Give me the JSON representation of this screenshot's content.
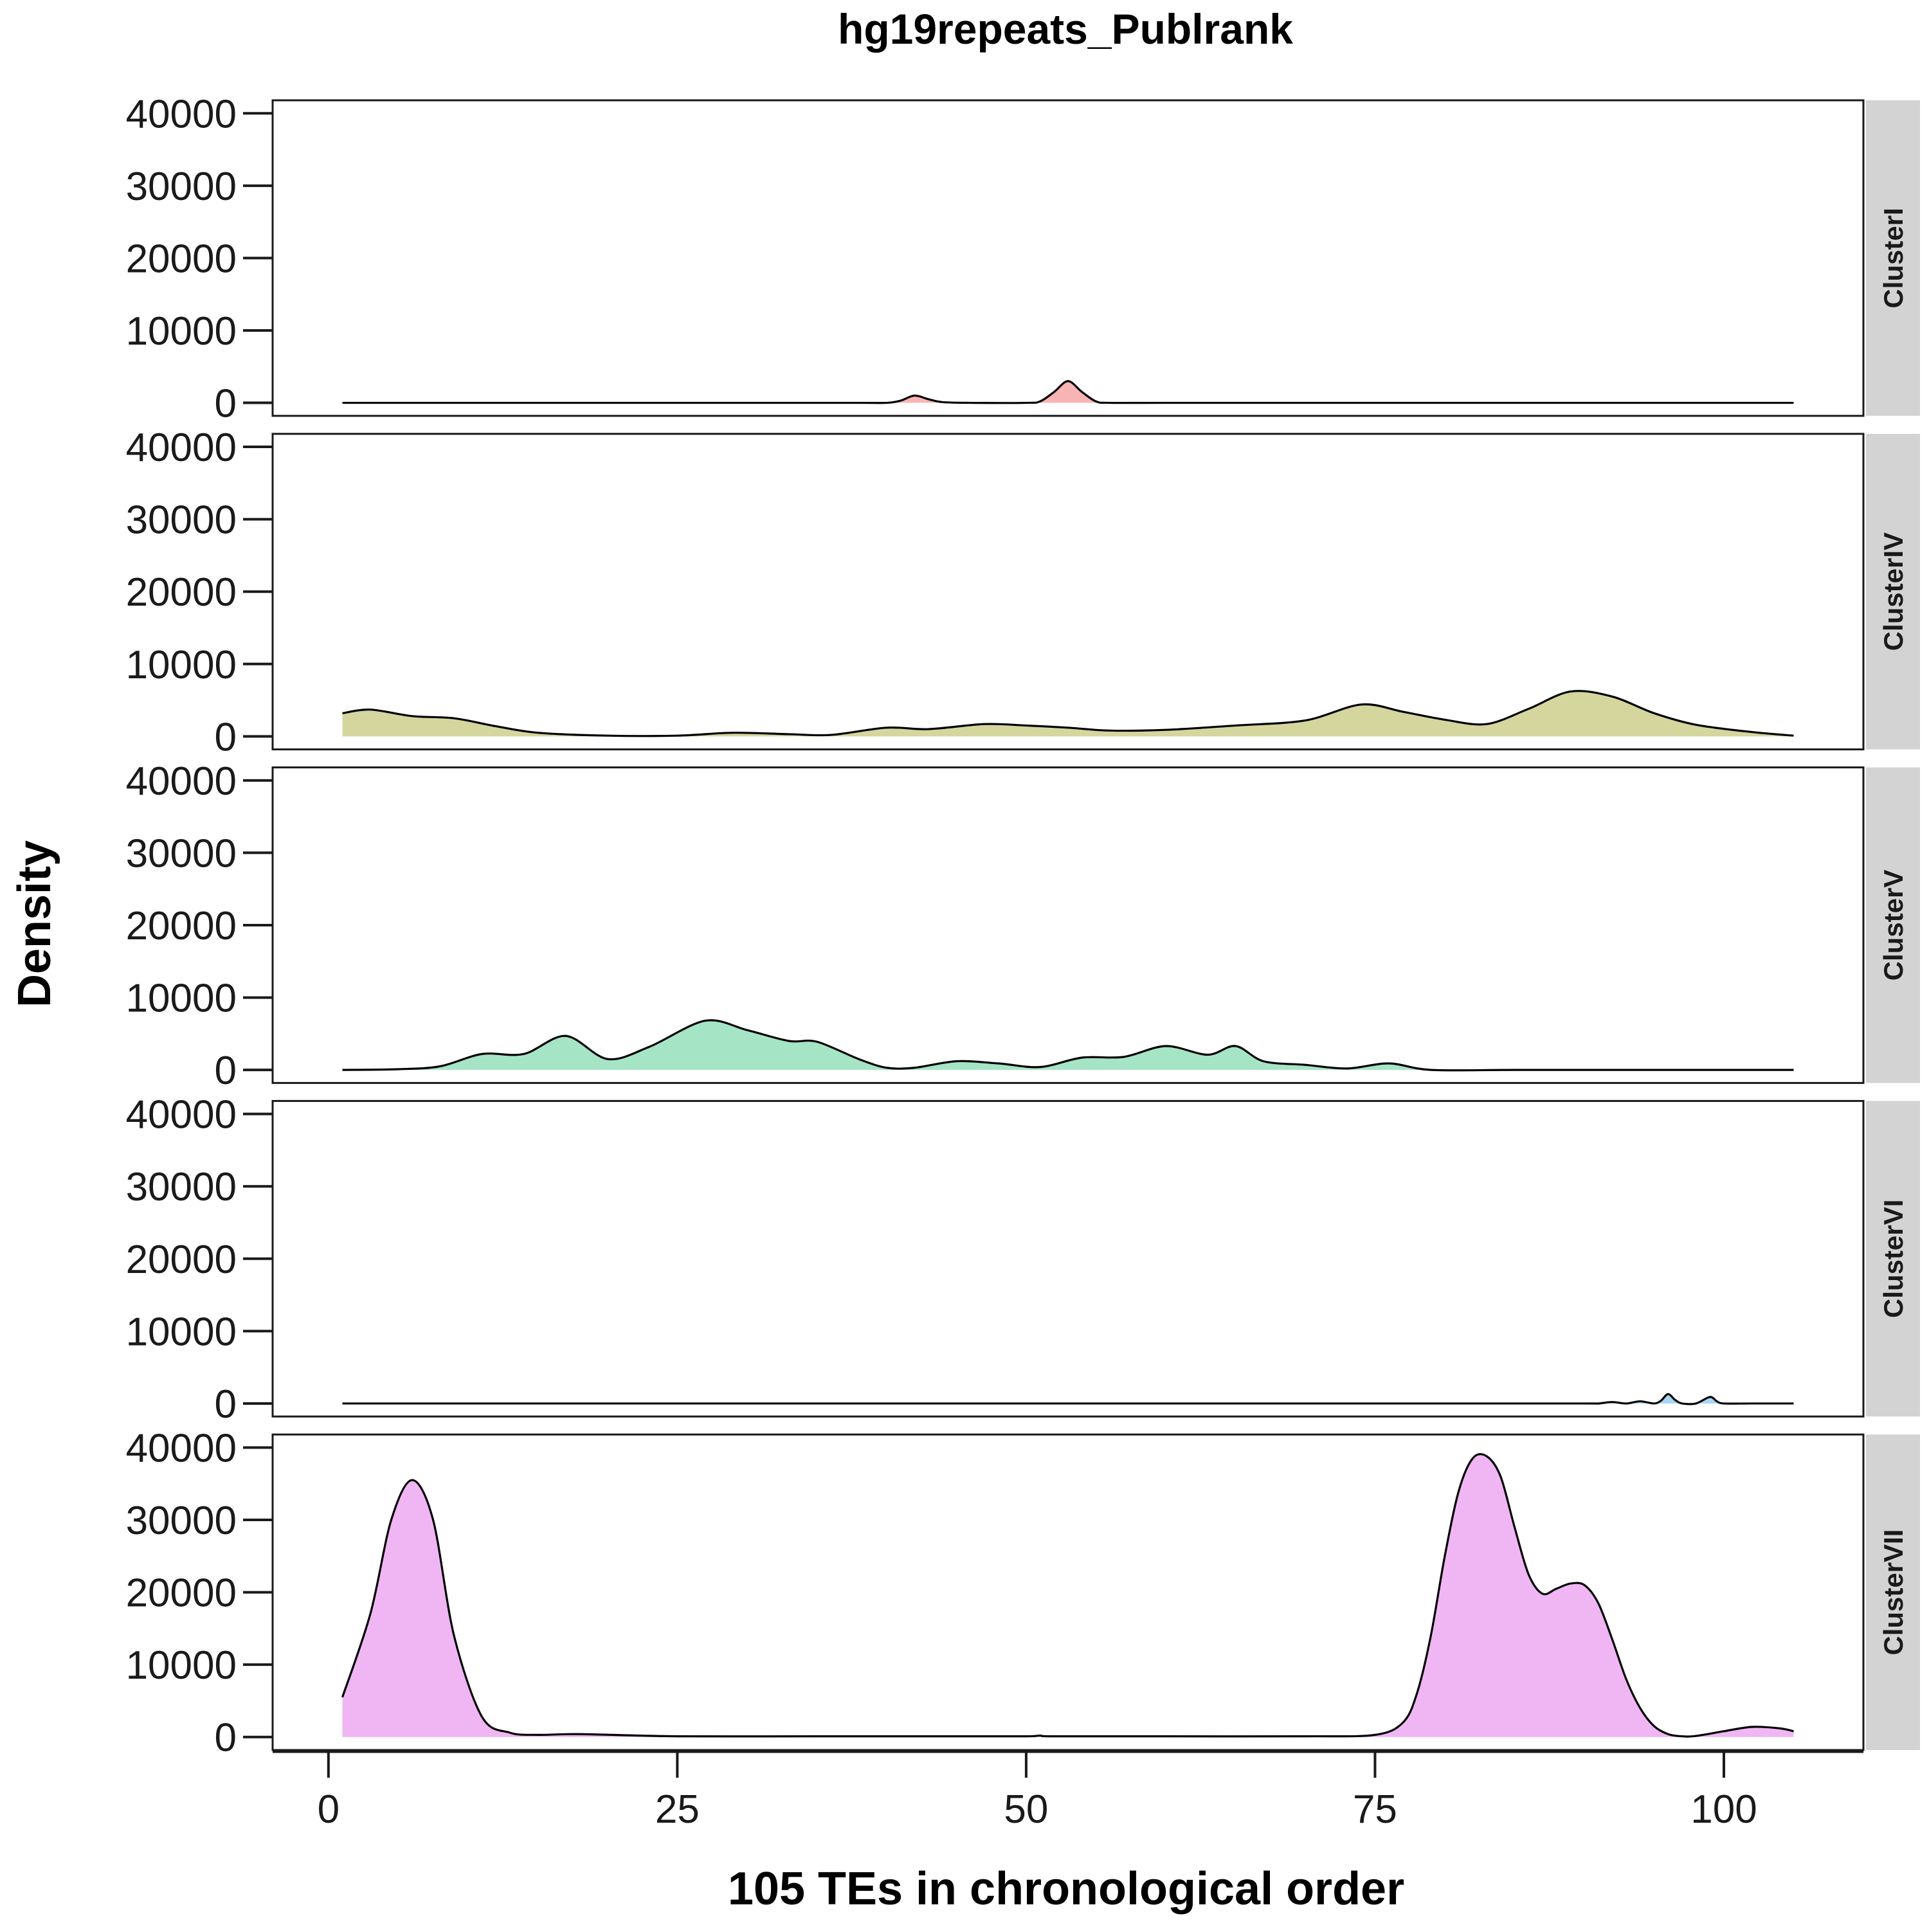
{
  "chart_data": {
    "type": "area",
    "title": "hg19repeats_Publrank",
    "xlabel": "105 TEs in chronological order",
    "ylabel": "Density",
    "xlim": [
      -4,
      110
    ],
    "ylim": [
      -1800,
      41800
    ],
    "x_ticks": [
      0,
      25,
      50,
      75,
      100
    ],
    "x_tick_labels": [
      "0",
      "25",
      "50",
      "75",
      "100"
    ],
    "y_ticks": [
      0,
      10000,
      20000,
      30000,
      40000
    ],
    "y_tick_labels": [
      "0",
      "10000",
      "20000",
      "30000",
      "40000"
    ],
    "grid": false,
    "legend": "none",
    "facets": [
      {
        "name": "ClusterI",
        "color": "#F8B4B4",
        "x": [
          1,
          10,
          20,
          30,
          38,
          40,
          41,
          42,
          43,
          44,
          46,
          50,
          51,
          52,
          53,
          54,
          55,
          56,
          60,
          70,
          80,
          90,
          100,
          105
        ],
        "y": [
          0,
          0,
          0,
          0,
          0,
          0,
          300,
          1000,
          500,
          100,
          0,
          0,
          200,
          1500,
          3000,
          1500,
          200,
          0,
          0,
          0,
          0,
          0,
          0,
          0
        ]
      },
      {
        "name": "ClusterIV",
        "color": "#D4D69E",
        "x": [
          1,
          3,
          6,
          9,
          12,
          15,
          20,
          25,
          29,
          33,
          36,
          40,
          43,
          47,
          50,
          53,
          56,
          60,
          65,
          70,
          74,
          77,
          80,
          83,
          86,
          89,
          92,
          95,
          98,
          102,
          105
        ],
        "y": [
          3200,
          3700,
          2800,
          2500,
          1400,
          500,
          100,
          100,
          500,
          300,
          200,
          1200,
          1000,
          1700,
          1500,
          1200,
          800,
          900,
          1500,
          2200,
          4400,
          3400,
          2300,
          1700,
          3800,
          6200,
          5500,
          3200,
          1600,
          600,
          100
        ]
      },
      {
        "name": "ClusterV",
        "color": "#A6E4C6",
        "x": [
          1,
          5,
          8,
          11,
          14,
          17,
          20,
          23,
          27,
          30,
          33,
          35,
          38,
          40,
          42,
          45,
          48,
          51,
          54,
          57,
          60,
          63,
          65,
          67,
          70,
          73,
          76,
          79,
          85,
          95,
          105
        ],
        "y": [
          0,
          100,
          500,
          2200,
          2200,
          4700,
          1500,
          3200,
          6800,
          5500,
          4000,
          3900,
          1500,
          300,
          300,
          1200,
          900,
          400,
          1700,
          1800,
          3300,
          2100,
          3300,
          1200,
          700,
          200,
          900,
          0,
          0,
          0,
          0
        ]
      },
      {
        "name": "ClusterVI",
        "color": "#A6D6F4",
        "x": [
          1,
          20,
          40,
          60,
          80,
          90,
          91,
          92,
          93,
          94,
          95,
          95.5,
          96,
          96.5,
          97,
          98,
          99,
          99.5,
          100,
          102,
          105
        ],
        "y": [
          0,
          0,
          0,
          0,
          0,
          0,
          0,
          200,
          0,
          300,
          0,
          400,
          1300,
          500,
          0,
          0,
          900,
          300,
          0,
          0,
          0
        ]
      },
      {
        "name": "ClusterVII",
        "color": "#F0B6F4",
        "x": [
          1,
          3,
          4.5,
          6,
          7.5,
          9,
          11,
          13,
          15,
          18,
          25,
          35,
          45,
          50,
          51,
          52,
          60,
          70,
          75,
          77,
          78,
          79,
          80,
          81,
          82,
          83,
          84,
          85,
          86,
          87,
          88,
          89,
          90,
          91,
          92,
          93,
          94,
          95,
          96,
          97,
          98,
          100,
          102,
          104,
          105
        ],
        "y": [
          5500,
          17000,
          30000,
          35500,
          30000,
          14000,
          2800,
          600,
          300,
          400,
          100,
          100,
          100,
          100,
          200,
          100,
          100,
          100,
          300,
          2000,
          6000,
          14000,
          25000,
          34000,
          38500,
          38800,
          36000,
          29000,
          22500,
          19800,
          20500,
          21200,
          21000,
          18500,
          13500,
          8000,
          4000,
          1500,
          400,
          100,
          150,
          800,
          1400,
          1200,
          800
        ]
      }
    ]
  }
}
